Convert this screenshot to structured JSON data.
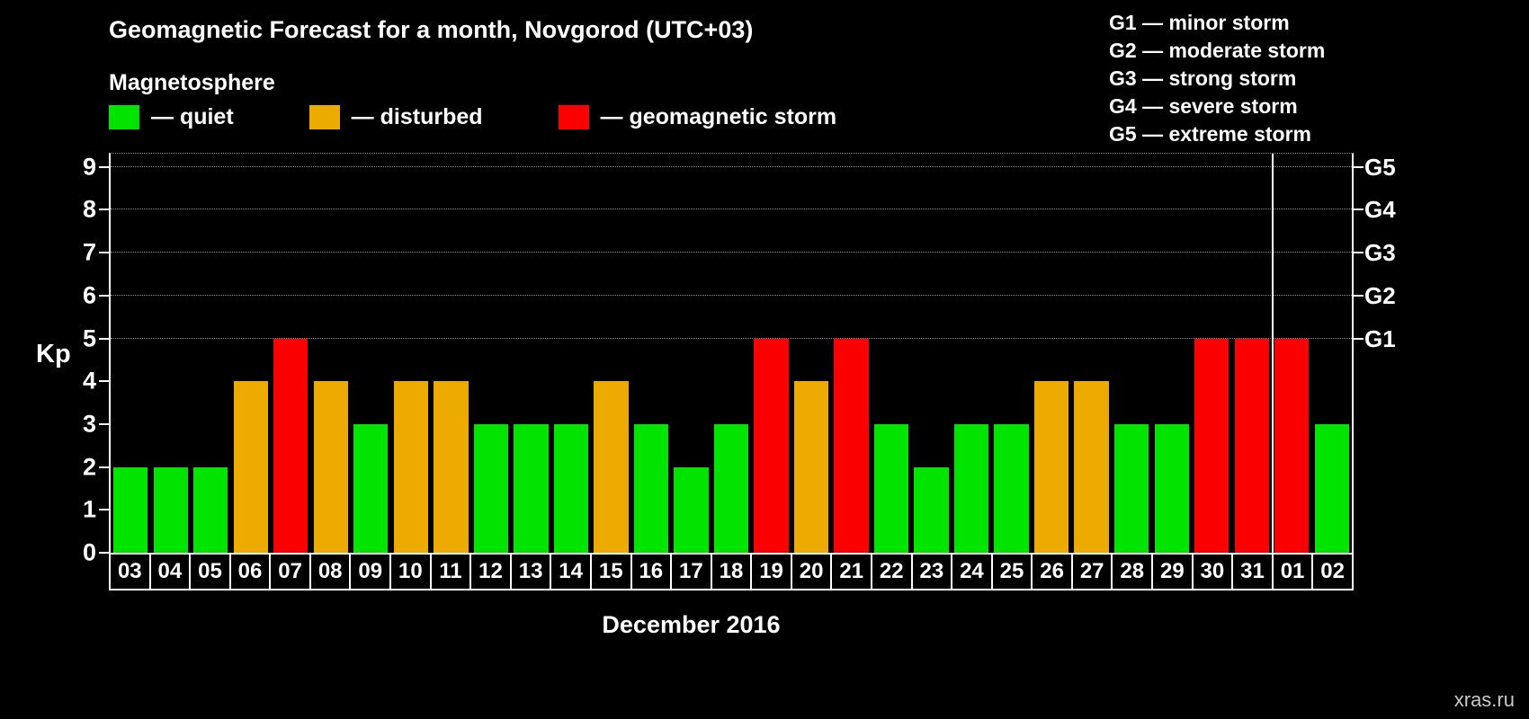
{
  "title": "Geomagnetic Forecast for a month, Novgorod (UTC+03)",
  "legend_title": "Magnetosphere",
  "legend": [
    {
      "state": "quiet",
      "label": "— quiet"
    },
    {
      "state": "disturbed",
      "label": "— disturbed"
    },
    {
      "state": "storm",
      "label": "— geomagnetic storm"
    }
  ],
  "g_legend": [
    "G1 — minor storm",
    "G2 — moderate storm",
    "G3 — strong storm",
    "G4 — severe storm",
    "G5 — extreme storm"
  ],
  "colors": {
    "quiet": "#00e400",
    "disturbed": "#edaa00",
    "storm": "#fb0000",
    "background": "#000000",
    "text": "#ffffff",
    "grid": "#8c8c8c"
  },
  "kp_label": "Kp",
  "month_label": "December 2016",
  "watermark": "xras.ru",
  "chart_data": {
    "type": "bar",
    "title": "Geomagnetic Forecast for a month, Novgorod (UTC+03)",
    "xlabel": "December 2016",
    "ylabel": "Kp",
    "categories": [
      "03",
      "04",
      "05",
      "06",
      "07",
      "08",
      "09",
      "10",
      "11",
      "12",
      "13",
      "14",
      "15",
      "16",
      "17",
      "18",
      "19",
      "20",
      "21",
      "22",
      "23",
      "24",
      "25",
      "26",
      "27",
      "28",
      "29",
      "30",
      "31",
      "01",
      "02"
    ],
    "values": [
      2,
      2,
      2,
      4,
      5,
      4,
      3,
      4,
      4,
      3,
      3,
      3,
      4,
      3,
      2,
      3,
      5,
      4,
      5,
      3,
      2,
      3,
      3,
      4,
      4,
      3,
      3,
      5,
      5,
      5,
      3
    ],
    "states": [
      "quiet",
      "quiet",
      "quiet",
      "disturbed",
      "storm",
      "disturbed",
      "quiet",
      "disturbed",
      "disturbed",
      "quiet",
      "quiet",
      "quiet",
      "disturbed",
      "quiet",
      "quiet",
      "quiet",
      "storm",
      "disturbed",
      "storm",
      "quiet",
      "quiet",
      "quiet",
      "quiet",
      "disturbed",
      "disturbed",
      "quiet",
      "quiet",
      "storm",
      "storm",
      "storm",
      "quiet"
    ],
    "ylim": [
      0,
      9.31
    ],
    "yticks": [
      0,
      1,
      2,
      3,
      4,
      5,
      6,
      7,
      8,
      9
    ],
    "gridline_levels": [
      5,
      6,
      7,
      8,
      9
    ],
    "right_axis": [
      {
        "label": "G1",
        "kp": 5
      },
      {
        "label": "G2",
        "kp": 6
      },
      {
        "label": "G3",
        "kp": 7
      },
      {
        "label": "G4",
        "kp": 8
      },
      {
        "label": "G5",
        "kp": 9
      }
    ],
    "month_boundary_index": 29,
    "grid": true,
    "legend_position": "top-left"
  }
}
